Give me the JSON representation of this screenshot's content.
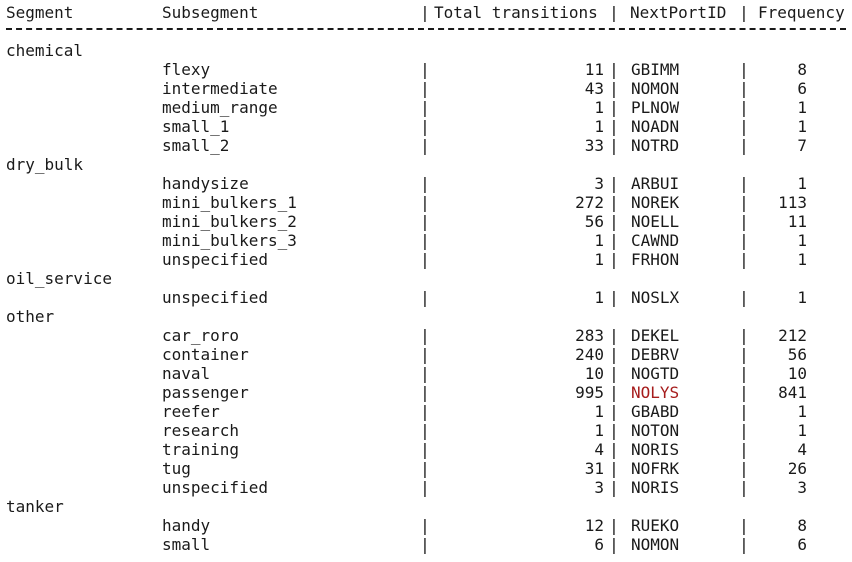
{
  "headers": {
    "segment": "Segment",
    "subsegment": "Subsegment",
    "total": "Total transitions",
    "port": "NextPortID",
    "freq": "Frequency",
    "sep": "|"
  },
  "rows": [
    {
      "type": "segment",
      "segment": "chemical"
    },
    {
      "type": "data",
      "subsegment": "flexy",
      "total": "11",
      "port": "GBIMM",
      "freq": "8"
    },
    {
      "type": "data",
      "subsegment": "intermediate",
      "total": "43",
      "port": "NOMON",
      "freq": "6"
    },
    {
      "type": "data",
      "subsegment": "medium_range",
      "total": "1",
      "port": "PLNOW",
      "freq": "1"
    },
    {
      "type": "data",
      "subsegment": "small_1",
      "total": "1",
      "port": "NOADN",
      "freq": "1"
    },
    {
      "type": "data",
      "subsegment": "small_2",
      "total": "33",
      "port": "NOTRD",
      "freq": "7"
    },
    {
      "type": "segment",
      "segment": "dry_bulk"
    },
    {
      "type": "data",
      "subsegment": "handysize",
      "total": "3",
      "port": "ARBUI",
      "freq": "1"
    },
    {
      "type": "data",
      "subsegment": "mini_bulkers_1",
      "total": "272",
      "port": "NOREK",
      "freq": "113"
    },
    {
      "type": "data",
      "subsegment": "mini_bulkers_2",
      "total": "56",
      "port": "NOELL",
      "freq": "11"
    },
    {
      "type": "data",
      "subsegment": "mini_bulkers_3",
      "total": "1",
      "port": "CAWND",
      "freq": "1"
    },
    {
      "type": "data",
      "subsegment": "unspecified",
      "total": "1",
      "port": "FRHON",
      "freq": "1"
    },
    {
      "type": "segment",
      "segment": "oil_service"
    },
    {
      "type": "data",
      "subsegment": "unspecified",
      "total": "1",
      "port": "NOSLX",
      "freq": "1"
    },
    {
      "type": "segment",
      "segment": "other"
    },
    {
      "type": "data",
      "subsegment": "car_roro",
      "total": "283",
      "port": "DEKEL",
      "freq": "212"
    },
    {
      "type": "data",
      "subsegment": "container",
      "total": "240",
      "port": "DEBRV",
      "freq": "56"
    },
    {
      "type": "data",
      "subsegment": "naval",
      "total": "10",
      "port": "NOGTD",
      "freq": "10"
    },
    {
      "type": "data",
      "subsegment": "passenger",
      "total": "995",
      "port": "NOLYS",
      "freq": "841",
      "highlight": true
    },
    {
      "type": "data",
      "subsegment": "reefer",
      "total": "1",
      "port": "GBABD",
      "freq": "1"
    },
    {
      "type": "data",
      "subsegment": "research",
      "total": "1",
      "port": "NOTON",
      "freq": "1"
    },
    {
      "type": "data",
      "subsegment": "training",
      "total": "4",
      "port": "NORIS",
      "freq": "4"
    },
    {
      "type": "data",
      "subsegment": "tug",
      "total": "31",
      "port": "NOFRK",
      "freq": "26"
    },
    {
      "type": "data",
      "subsegment": "unspecified",
      "total": "3",
      "port": "NORIS",
      "freq": "3"
    },
    {
      "type": "segment",
      "segment": "tanker"
    },
    {
      "type": "data",
      "subsegment": "handy",
      "total": "12",
      "port": "RUEKO",
      "freq": "8"
    },
    {
      "type": "data",
      "subsegment": "small",
      "total": "6",
      "port": "NOMON",
      "freq": "6"
    }
  ],
  "colors": {
    "text": "#1a1a1a",
    "highlight": "#a61c1c"
  }
}
